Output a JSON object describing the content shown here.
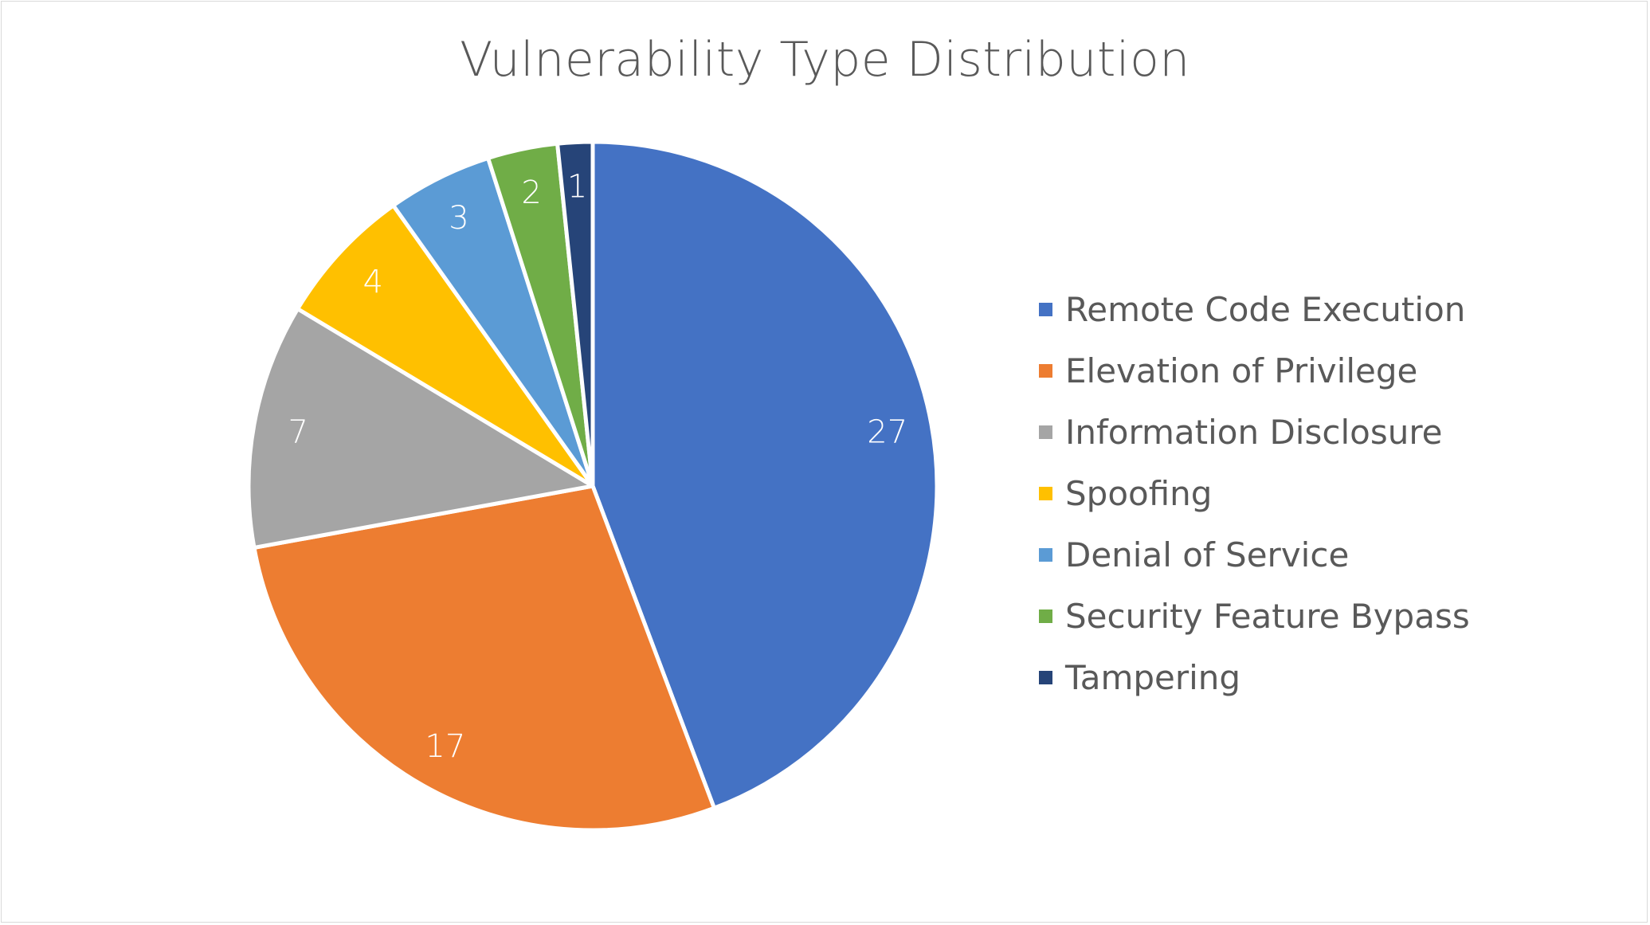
{
  "chart_data": {
    "type": "pie",
    "title": "Vulnerability Type Distribution",
    "categories": [
      "Remote Code Execution",
      "Elevation of Privilege",
      "Information Disclosure",
      "Spoofing",
      "Denial of Service",
      "Security Feature Bypass",
      "Tampering"
    ],
    "values": [
      27,
      17,
      7,
      4,
      3,
      2,
      1
    ],
    "data_labels": [
      "27",
      "17",
      "7",
      "4",
      "3",
      "2",
      "1"
    ],
    "colors": [
      "#4472C4",
      "#ED7D31",
      "#A5A5A5",
      "#FFC000",
      "#5B9BD5",
      "#70AD47",
      "#264478"
    ],
    "start_angle_deg": 0,
    "direction": "clockwise",
    "legend_position": "right"
  }
}
